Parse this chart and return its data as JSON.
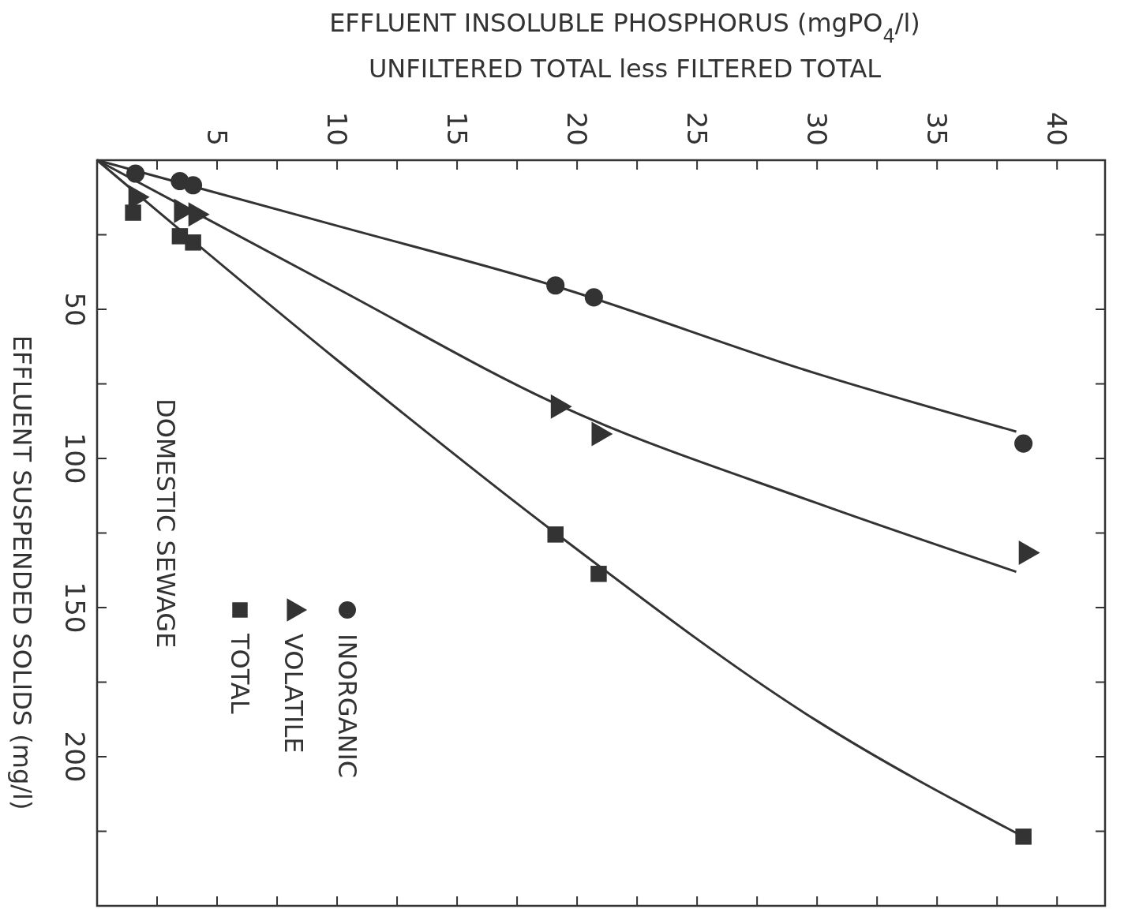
{
  "chart_data": {
    "type": "scatter",
    "xlabel": "EFFLUENT INSOLUBLE PHOSPHORUS (mgPO$_{4}$/l)\nUNFILTERED TOTAL  less  FILTERED TOTAL",
    "ylabel": "EFFLUENT SUSPENDED SOLIDS (mg/l)",
    "annotations": [
      "DOMESTIC SEWAGE"
    ],
    "xlim": [
      0,
      42
    ],
    "ylim": [
      250,
      0
    ],
    "xticks": [
      {
        "value": 2.5,
        "label": null
      },
      5,
      {
        "value": 7.5,
        "label": null
      },
      10,
      {
        "value": 12.5,
        "label": null
      },
      15,
      {
        "value": 17.5,
        "label": null
      },
      20,
      {
        "value": 22.5,
        "label": null
      },
      25,
      {
        "value": 27.5,
        "label": null
      },
      30,
      {
        "value": 32.5,
        "label": null
      },
      35,
      {
        "value": 37.5,
        "label": null
      },
      40
    ],
    "yticks": [
      {
        "value": 25,
        "label": null
      },
      50,
      {
        "value": 75,
        "label": null
      },
      100,
      {
        "value": 125,
        "label": null
      },
      150,
      {
        "value": 175,
        "label": null
      },
      200,
      {
        "value": 225,
        "label": null
      }
    ],
    "grid": false,
    "legend": "bottom left",
    "series": [
      {
        "name": "INORGANIC",
        "type": "scatter",
        "marker": "circle",
        "color": "#333333",
        "x": [
          1.6,
          3.45,
          4.0,
          19.1,
          20.7,
          38.6
        ],
        "values": [
          4.5,
          7,
          8.4,
          42,
          46,
          95
        ]
      },
      {
        "name": "VOLATILE",
        "type": "scatter",
        "marker": "triangle",
        "color": "#333333",
        "x": [
          1.6,
          3.5,
          4.1,
          19.2,
          20.9,
          38.7
        ],
        "values": [
          12.4,
          17,
          18.2,
          82.6,
          91.8,
          131.6
        ]
      },
      {
        "name": "TOTAL",
        "type": "scatter",
        "marker": "square",
        "color": "#333333",
        "x": [
          1.5,
          3.45,
          4.0,
          19.1,
          20.9,
          38.6
        ],
        "values": [
          17.6,
          25.5,
          27.6,
          125.5,
          138.7,
          226.8
        ]
      },
      {
        "type": "line",
        "marker": "none",
        "color": "#333333",
        "x": [
          0,
          10,
          19,
          30,
          38.3
        ],
        "values": [
          0,
          22,
          42,
          71.6,
          91
        ]
      },
      {
        "type": "line",
        "marker": "none",
        "color": "#333333",
        "x": [
          0,
          10,
          19.2,
          30,
          38.3
        ],
        "values": [
          0,
          43,
          82,
          115,
          138
        ]
      },
      {
        "type": "line",
        "marker": "none",
        "color": "#333333",
        "x": [
          0,
          10,
          19.1,
          30,
          38.4
        ],
        "values": [
          0,
          67,
          125,
          188,
          226
        ]
      }
    ]
  }
}
